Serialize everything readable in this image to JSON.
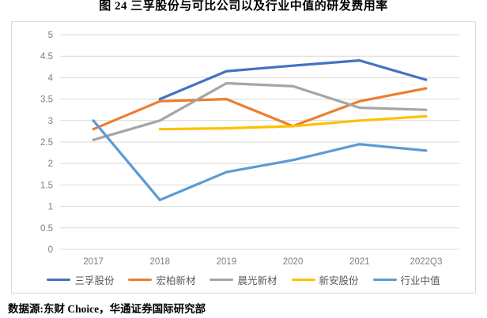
{
  "title": "图 24 三孚股份与可比公司以及行业中值的研发费用率",
  "source": "数据源:东财 Choice，华通证券国际研究部",
  "colors": {
    "grid": "#d9d9d9",
    "axis_text": "#7f7f7f",
    "legend_text": "#595959",
    "frame_border": "#d9d9d9"
  },
  "chart_data": {
    "type": "line",
    "title": "图 24 三孚股份与可比公司以及行业中值的研发费用率",
    "xlabel": "",
    "ylabel": "",
    "ylim": [
      0,
      5
    ],
    "ytick_step": 0.5,
    "yticks": [
      "0",
      "0.5",
      "1",
      "1.5",
      "2",
      "2.5",
      "3",
      "3.5",
      "4",
      "4.5",
      "5"
    ],
    "grid": true,
    "legend_position": "bottom",
    "categories": [
      "2017",
      "2018",
      "2019",
      "2020",
      "2021",
      "2022Q3"
    ],
    "series": [
      {
        "name": "三孚股份",
        "color": "#4472C4",
        "values": [
          null,
          3.5,
          4.15,
          4.28,
          4.4,
          3.95
        ]
      },
      {
        "name": "宏柏新材",
        "color": "#ED7D31",
        "values": [
          2.8,
          3.45,
          3.5,
          2.87,
          3.45,
          3.75
        ]
      },
      {
        "name": "晨光新材",
        "color": "#A5A5A5",
        "values": [
          2.55,
          3.0,
          3.87,
          3.8,
          3.3,
          3.25
        ]
      },
      {
        "name": "新安股份",
        "color": "#FFC000",
        "values": [
          null,
          2.8,
          2.82,
          2.87,
          3.0,
          3.1
        ]
      },
      {
        "name": "行业中值",
        "color": "#5B9BD5",
        "values": [
          3.0,
          1.15,
          1.8,
          2.08,
          2.45,
          2.3
        ]
      }
    ]
  }
}
